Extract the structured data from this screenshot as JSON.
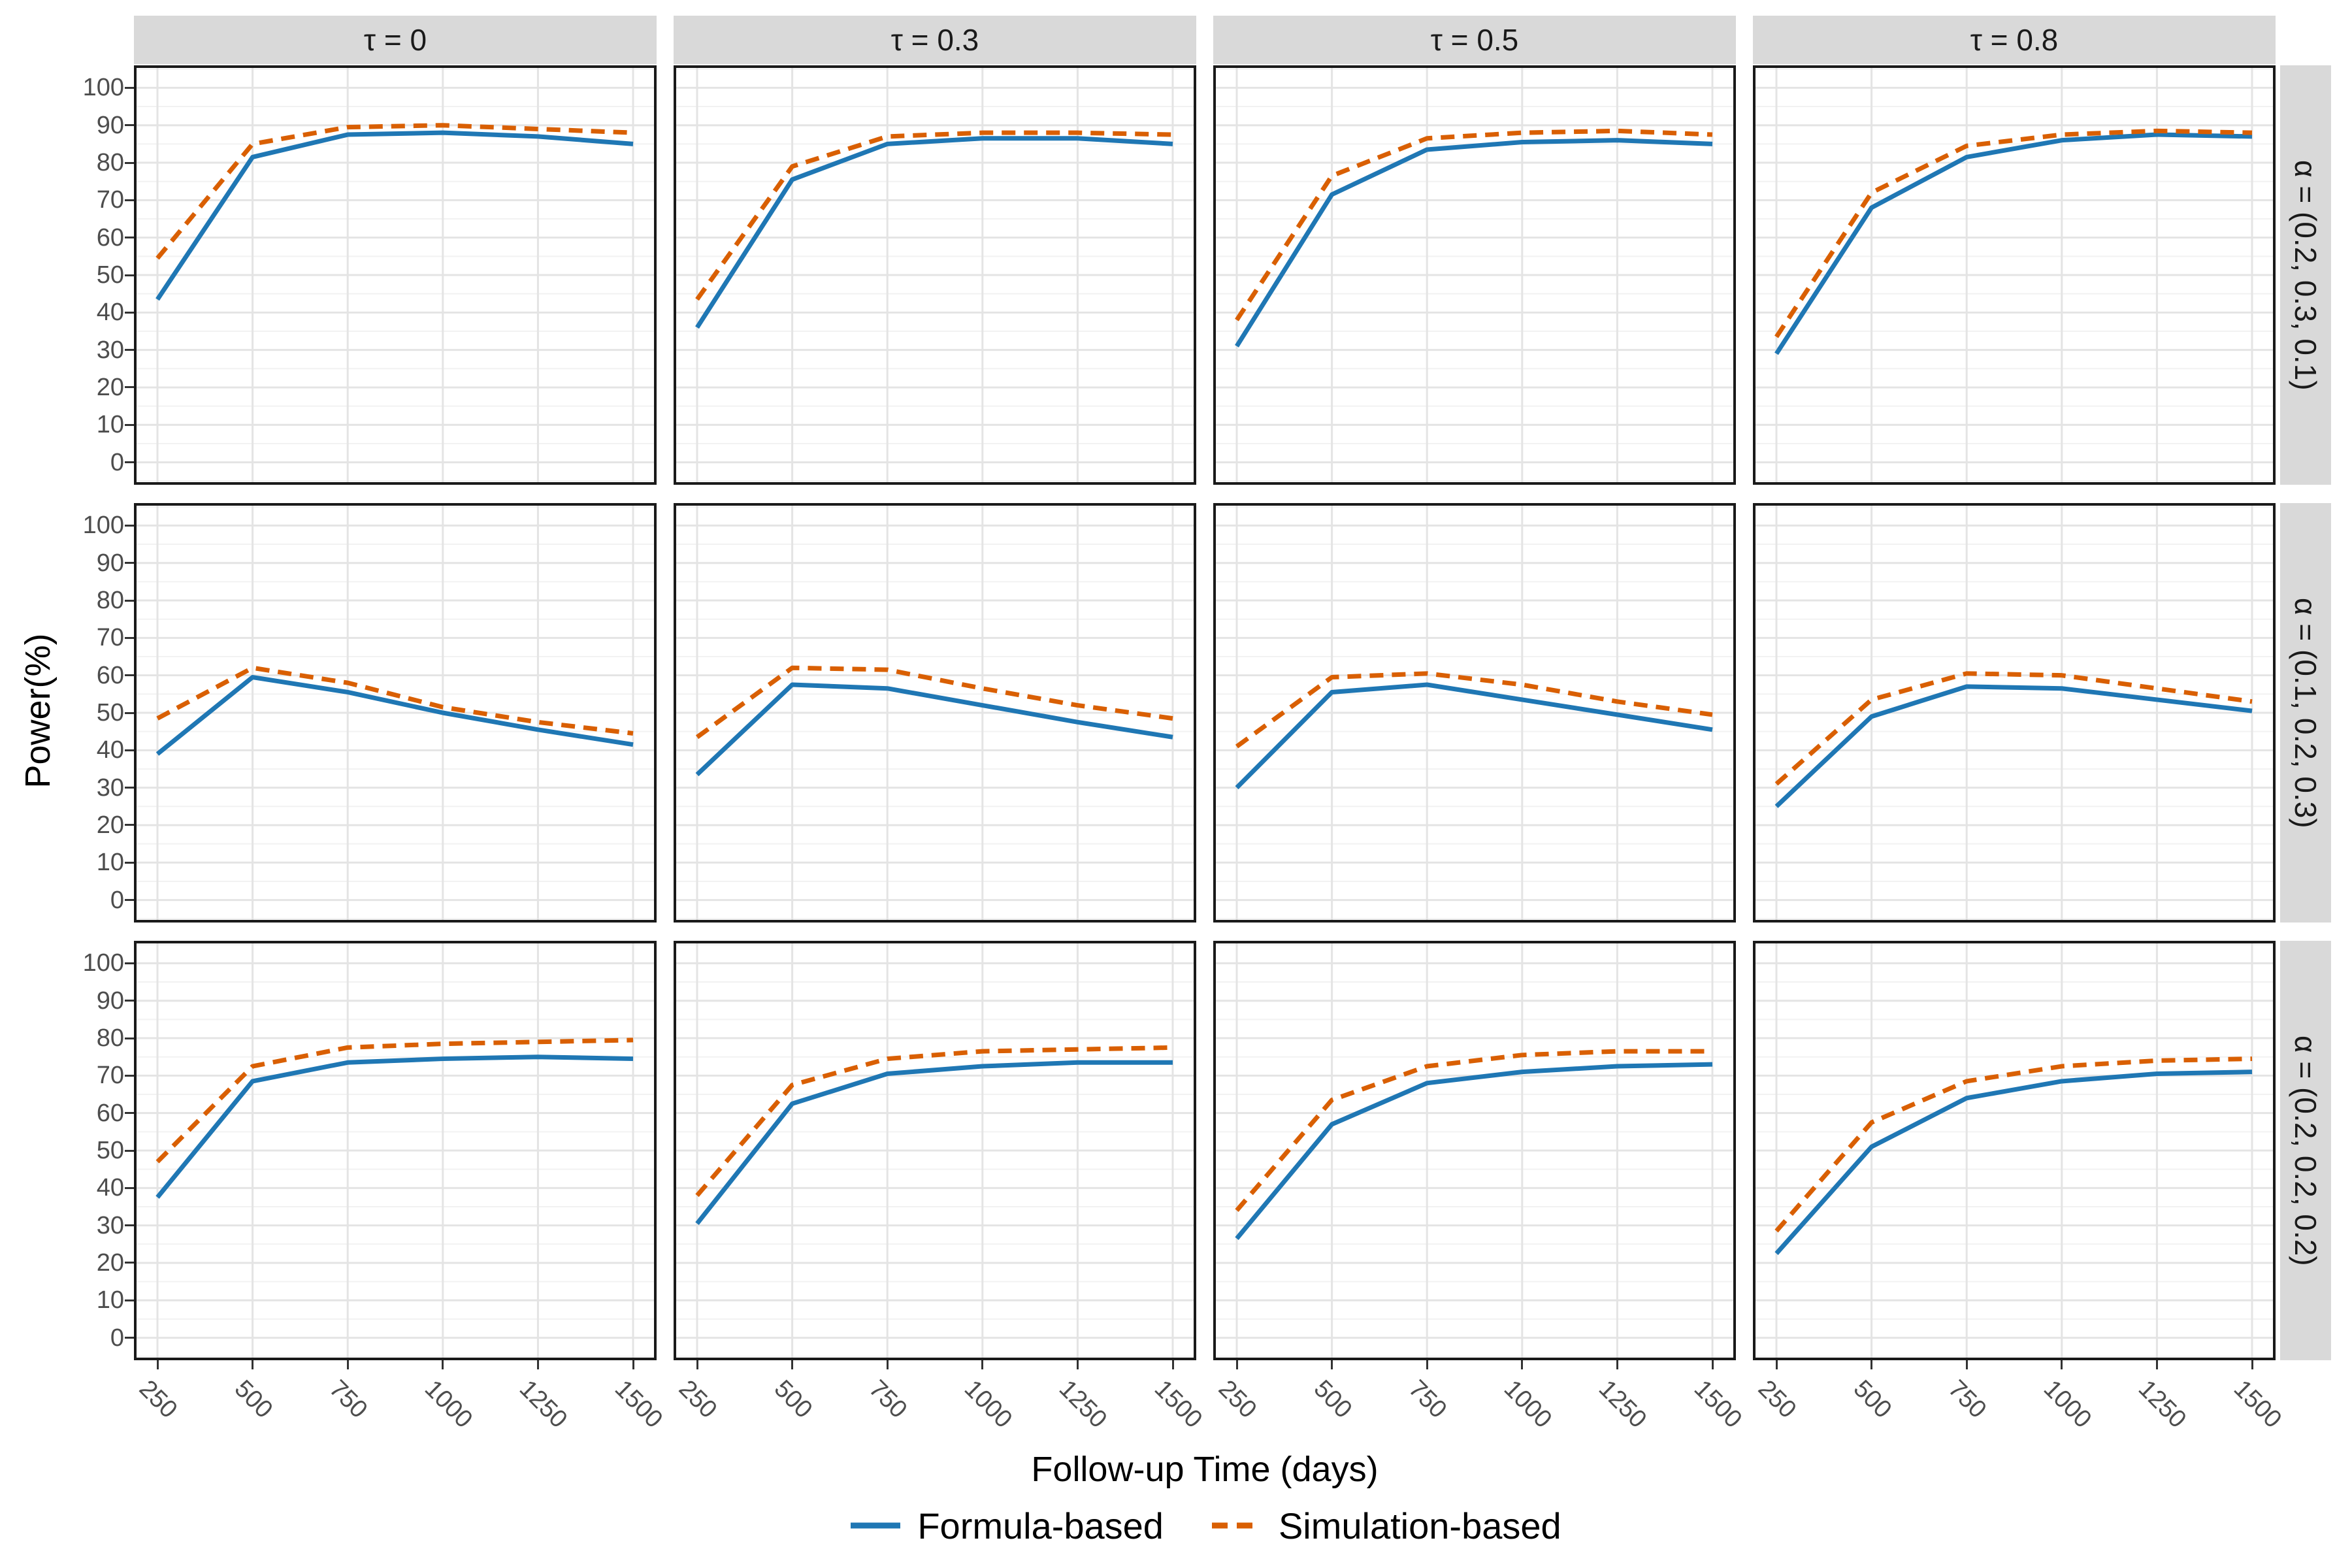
{
  "chart_data": {
    "type": "line",
    "title": "",
    "xlabel": "Follow-up Time (days)",
    "ylabel": "Power(%)",
    "x": [
      250,
      500,
      750,
      1000,
      1250,
      1500
    ],
    "xticks": [
      250,
      500,
      750,
      1000,
      1250,
      1500
    ],
    "yticks": [
      0,
      10,
      20,
      30,
      40,
      50,
      60,
      70,
      80,
      90,
      100
    ],
    "ylim": [
      0,
      100
    ],
    "grid": {
      "major_color": "#e4e4e4",
      "minor_color": "#f2f2f2",
      "minor_y_step": 5,
      "vertical_minor": false
    },
    "panel_background": "#ffffff",
    "panel_border_color": "#1a1a1a",
    "strip_background": "#d9d9d9",
    "col_facets": [
      "τ = 0",
      "τ = 0.3",
      "τ = 0.5",
      "τ = 0.8"
    ],
    "row_facets": [
      "α = (0.2, 0.3, 0.1)",
      "α = (0.1, 0.2, 0.3)",
      "α = (0.2, 0.2, 0.2)"
    ],
    "series": [
      {
        "name": "Formula-based",
        "color": "#1f77b4",
        "style": "solid"
      },
      {
        "name": "Simulation-based",
        "color": "#d95f02",
        "style": "dashed"
      }
    ],
    "legend_position": "bottom",
    "panels": [
      {
        "row_facet": "α = (0.2, 0.3, 0.1)",
        "col_facet": "τ = 0",
        "formula_based": [
          43.5,
          81.5,
          87.5,
          88,
          87,
          85
        ],
        "simulation_based": [
          54.5,
          85,
          89.5,
          90,
          89,
          88
        ]
      },
      {
        "row_facet": "α = (0.2, 0.3, 0.1)",
        "col_facet": "τ = 0.3",
        "formula_based": [
          36,
          75.5,
          85,
          86.5,
          86.5,
          85
        ],
        "simulation_based": [
          43.5,
          79,
          87,
          88,
          88,
          87.5
        ]
      },
      {
        "row_facet": "α = (0.2, 0.3, 0.1)",
        "col_facet": "τ = 0.5",
        "formula_based": [
          31,
          71.5,
          83.5,
          85.5,
          86,
          85
        ],
        "simulation_based": [
          38,
          76.5,
          86.5,
          88,
          88.5,
          87.5
        ]
      },
      {
        "row_facet": "α = (0.2, 0.3, 0.1)",
        "col_facet": "τ = 0.8",
        "formula_based": [
          29,
          68,
          81.5,
          86,
          87.5,
          87
        ],
        "simulation_based": [
          33.5,
          72,
          84.5,
          87.5,
          88.5,
          88
        ]
      },
      {
        "row_facet": "α = (0.1, 0.2, 0.3)",
        "col_facet": "τ = 0",
        "formula_based": [
          39,
          59.5,
          55.5,
          50,
          45.5,
          41.5
        ],
        "simulation_based": [
          48.5,
          62,
          58,
          51.5,
          47.5,
          44.5
        ]
      },
      {
        "row_facet": "α = (0.1, 0.2, 0.3)",
        "col_facet": "τ = 0.3",
        "formula_based": [
          33.5,
          57.5,
          56.5,
          52,
          47.5,
          43.5
        ],
        "simulation_based": [
          43.5,
          62,
          61.5,
          56.5,
          52,
          48.5
        ]
      },
      {
        "row_facet": "α = (0.1, 0.2, 0.3)",
        "col_facet": "τ = 0.5",
        "formula_based": [
          30,
          55.5,
          57.5,
          53.5,
          49.5,
          45.5
        ],
        "simulation_based": [
          41,
          59.5,
          60.5,
          57.5,
          53,
          49.5
        ]
      },
      {
        "row_facet": "α = (0.1, 0.2, 0.3)",
        "col_facet": "τ = 0.8",
        "formula_based": [
          25,
          49,
          57,
          56.5,
          53.5,
          50.5
        ],
        "simulation_based": [
          31,
          53.5,
          60.5,
          60,
          56.5,
          53
        ]
      },
      {
        "row_facet": "α = (0.2, 0.2, 0.2)",
        "col_facet": "τ = 0",
        "formula_based": [
          37.5,
          68.5,
          73.5,
          74.5,
          75,
          74.5
        ],
        "simulation_based": [
          47,
          72.5,
          77.5,
          78.5,
          79,
          79.5
        ]
      },
      {
        "row_facet": "α = (0.2, 0.2, 0.2)",
        "col_facet": "τ = 0.3",
        "formula_based": [
          30.5,
          62.5,
          70.5,
          72.5,
          73.5,
          73.5
        ],
        "simulation_based": [
          38,
          67.5,
          74.5,
          76.5,
          77,
          77.5
        ]
      },
      {
        "row_facet": "α = (0.2, 0.2, 0.2)",
        "col_facet": "τ = 0.5",
        "formula_based": [
          26.5,
          57,
          68,
          71,
          72.5,
          73
        ],
        "simulation_based": [
          34,
          63.5,
          72.5,
          75.5,
          76.5,
          76.5
        ]
      },
      {
        "row_facet": "α = (0.2, 0.2, 0.2)",
        "col_facet": "τ = 0.8",
        "formula_based": [
          22.5,
          51,
          64,
          68.5,
          70.5,
          71
        ],
        "simulation_based": [
          28.5,
          57.5,
          68.5,
          72.5,
          74,
          74.5
        ]
      }
    ]
  }
}
